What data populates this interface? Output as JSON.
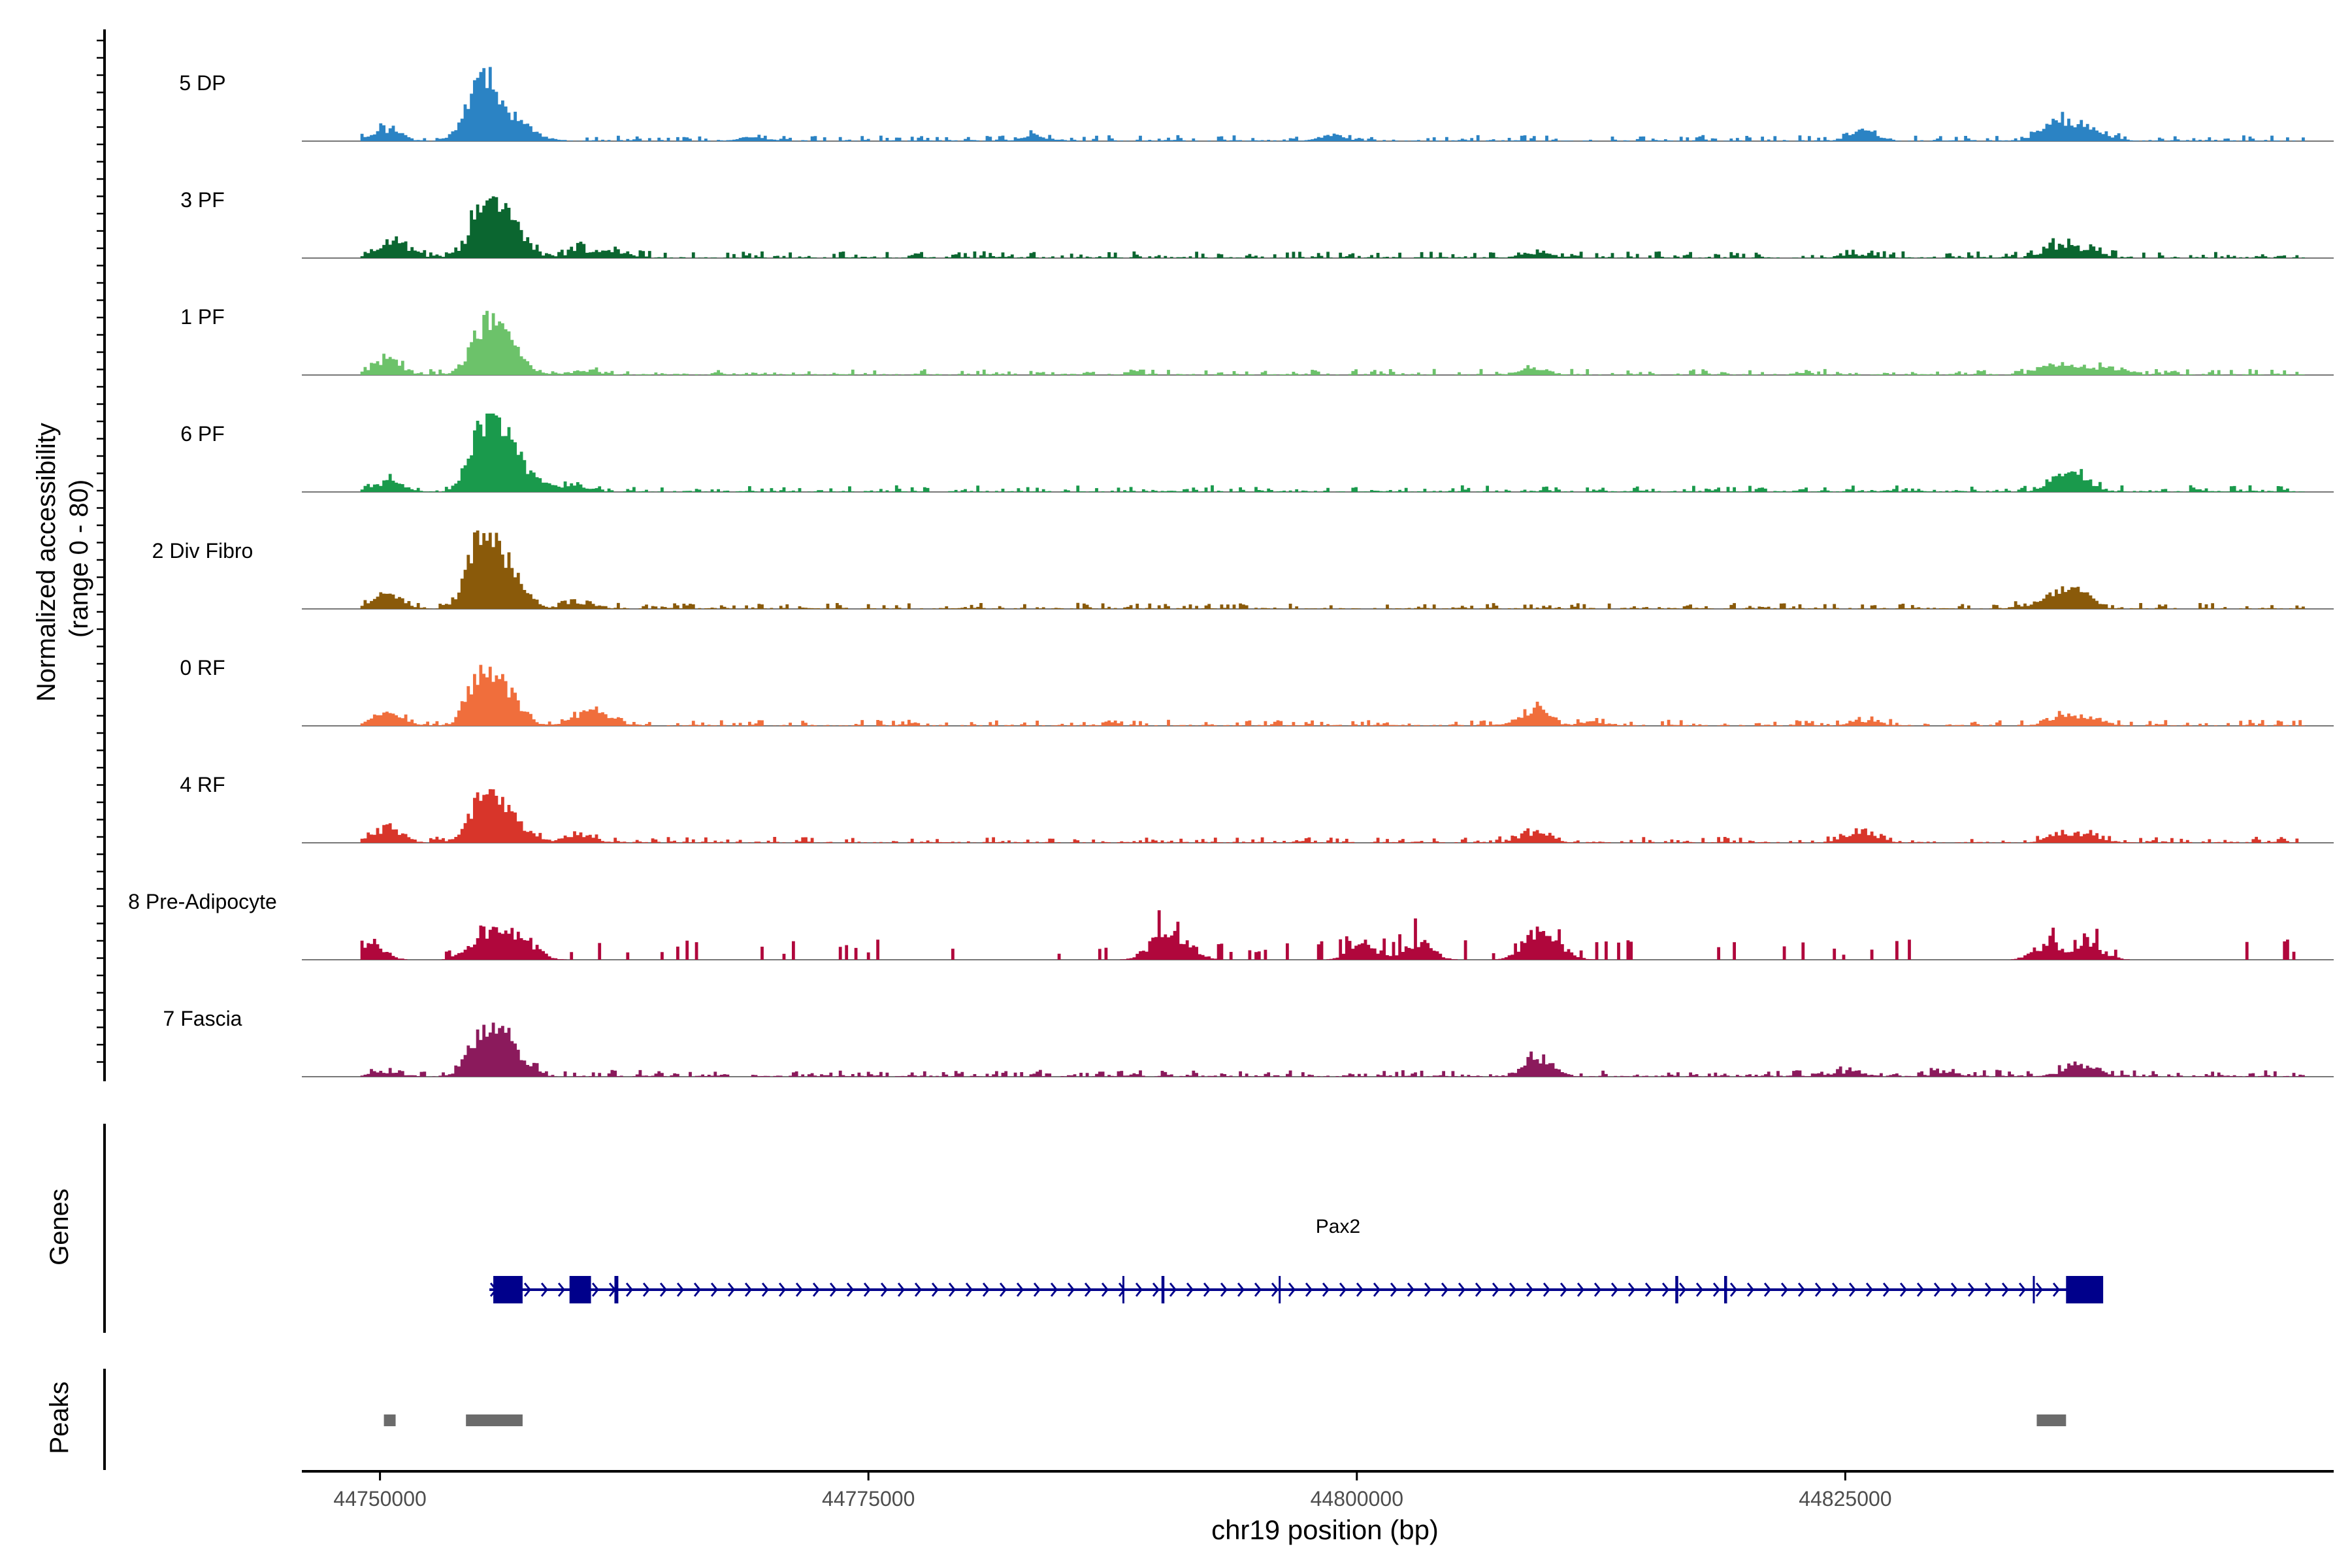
{
  "chart_data": {
    "type": "area",
    "title": "",
    "ylabel": "Normalized accessibility\n(range 0 - 80)",
    "ylabel_lines": [
      "Normalized accessibility",
      "(range 0 - 80)"
    ],
    "ylim": [
      0,
      80
    ],
    "xlabel": "chr19 position (bp)",
    "xlim": [
      44746000,
      44850000
    ],
    "x_ticks": [
      44750000,
      44775000,
      44800000,
      44825000
    ],
    "x_tick_labels": [
      "44750000",
      "44775000",
      "44800000",
      "44825000"
    ],
    "signal_range": [
      44749000,
      44848500
    ],
    "tracks": [
      {
        "name": "5 DP",
        "color": "#2b83c4",
        "peaks": [
          [
            44750300,
            22
          ],
          [
            44755100,
            80
          ],
          [
            44755600,
            24
          ],
          [
            44756600,
            16
          ],
          [
            44757000,
            14
          ],
          [
            44754300,
            8
          ],
          [
            44758000,
            6
          ],
          [
            44769000,
            6
          ],
          [
            44783500,
            8
          ],
          [
            44798700,
            9
          ],
          [
            44825800,
            18
          ],
          [
            44836000,
            28
          ],
          [
            44835200,
            12
          ],
          [
            44837000,
            14
          ],
          [
            44838000,
            8
          ]
        ],
        "base": 3.5,
        "density": 0.55
      },
      {
        "name": "3 PF",
        "color": "#0b6630",
        "peaks": [
          [
            44750300,
            22
          ],
          [
            44751200,
            12
          ],
          [
            44755100,
            55
          ],
          [
            44756100,
            40
          ],
          [
            44757000,
            28
          ],
          [
            44755600,
            30
          ],
          [
            44760200,
            14
          ],
          [
            44762000,
            10
          ],
          [
            44809200,
            8
          ],
          [
            44835800,
            18
          ],
          [
            44837200,
            14
          ],
          [
            44825500,
            6
          ]
        ],
        "base": 4,
        "density": 0.6
      },
      {
        "name": "1 PF",
        "color": "#6cc26a",
        "peaks": [
          [
            44750300,
            28
          ],
          [
            44755100,
            48
          ],
          [
            44756100,
            38
          ],
          [
            44757000,
            18
          ],
          [
            44755600,
            24
          ],
          [
            44760500,
            8
          ],
          [
            44809000,
            10
          ],
          [
            44836500,
            18
          ],
          [
            44838500,
            12
          ],
          [
            44835200,
            10
          ]
        ],
        "base": 3.5,
        "density": 0.55
      },
      {
        "name": "6 PF",
        "color": "#1a9a4c",
        "peaks": [
          [
            44750400,
            18
          ],
          [
            44755100,
            70
          ],
          [
            44756100,
            52
          ],
          [
            44757000,
            32
          ],
          [
            44755600,
            40
          ],
          [
            44758000,
            14
          ],
          [
            44760000,
            10
          ],
          [
            44836000,
            22
          ],
          [
            44837000,
            16
          ]
        ],
        "base": 4,
        "density": 0.6
      },
      {
        "name": "2 Div Fibro",
        "color": "#8a5a0a",
        "peaks": [
          [
            44750300,
            24
          ],
          [
            44755100,
            100
          ],
          [
            44755600,
            50
          ],
          [
            44756600,
            28
          ],
          [
            44757000,
            18
          ],
          [
            44760200,
            12
          ],
          [
            44836000,
            26
          ],
          [
            44837000,
            20
          ],
          [
            44834500,
            6
          ]
        ],
        "base": 3.5,
        "density": 0.55
      },
      {
        "name": "0 RF",
        "color": "#f06e3c",
        "peaks": [
          [
            44750300,
            22
          ],
          [
            44755100,
            72
          ],
          [
            44756100,
            42
          ],
          [
            44756800,
            22
          ],
          [
            44760300,
            20
          ],
          [
            44761500,
            12
          ],
          [
            44809000,
            28
          ],
          [
            44812000,
            6
          ],
          [
            44826000,
            8
          ],
          [
            44836000,
            16
          ],
          [
            44837500,
            12
          ]
        ],
        "base": 3.5,
        "density": 0.55
      },
      {
        "name": "4 RF",
        "color": "#d8352a",
        "peaks": [
          [
            44750300,
            24
          ],
          [
            44755100,
            58
          ],
          [
            44755700,
            28
          ],
          [
            44756400,
            22
          ],
          [
            44757200,
            14
          ],
          [
            44760200,
            12
          ],
          [
            44809000,
            18
          ],
          [
            44825800,
            20
          ],
          [
            44836000,
            14
          ],
          [
            44837500,
            10
          ]
        ],
        "base": 3.5,
        "density": 0.55
      },
      {
        "name": "8 Pre-Adipocyte",
        "color": "#b0073c",
        "peaks": [
          [
            44749400,
            30
          ],
          [
            44755100,
            40
          ],
          [
            44756200,
            34
          ],
          [
            44757400,
            28
          ],
          [
            44789800,
            32
          ],
          [
            44791000,
            28
          ],
          [
            44809000,
            42
          ],
          [
            44835300,
            28
          ],
          [
            44837500,
            24
          ],
          [
            44810200,
            20
          ],
          [
            44800300,
            26
          ],
          [
            44803100,
            30
          ]
        ],
        "base": 0,
        "density": 0.22,
        "sparse": true
      },
      {
        "name": "7 Fascia",
        "color": "#8b1a5c",
        "peaks": [
          [
            44750300,
            8
          ],
          [
            44755100,
            56
          ],
          [
            44755800,
            30
          ],
          [
            44756400,
            26
          ],
          [
            44757000,
            20
          ],
          [
            44809200,
            32
          ],
          [
            44836500,
            12
          ],
          [
            44837500,
            10
          ],
          [
            44825000,
            8
          ],
          [
            44830000,
            6
          ]
        ],
        "base": 4,
        "density": 0.6
      }
    ],
    "genes": {
      "label": "Genes",
      "gene_name": "Pax2",
      "strand": "+",
      "color": "#00008b",
      "start": 44755600,
      "end": 44837600,
      "exons": [
        [
          44755800,
          44757300
        ],
        [
          44759700,
          44760800
        ],
        [
          44762000,
          44762200
        ],
        [
          44788000,
          44788100
        ],
        [
          44790000,
          44790150
        ],
        [
          44796000,
          44796100
        ],
        [
          44816300,
          44816450
        ],
        [
          44818800,
          44818950
        ],
        [
          44834600,
          44834700
        ],
        [
          44836300,
          44838200
        ]
      ]
    },
    "peaks_track": {
      "label": "Peaks",
      "color": "#6b6b6b",
      "regions": [
        [
          44750200,
          44750800
        ],
        [
          44754400,
          44757300
        ],
        [
          44834800,
          44836300
        ]
      ]
    }
  }
}
